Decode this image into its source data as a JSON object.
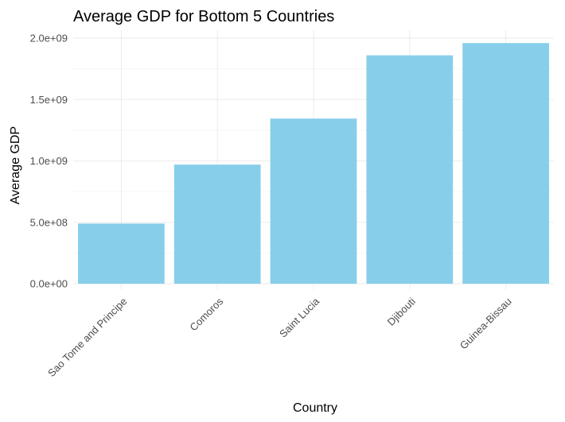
{
  "chart_data": {
    "type": "bar",
    "title": "Average GDP for Bottom 5 Countries",
    "xlabel": "Country",
    "ylabel": "Average GDP",
    "categories": [
      "Sao Tome and Principe",
      "Comoros",
      "Saint Lucia",
      "Djibouti",
      "Guinea-Bissau"
    ],
    "values": [
      490000000,
      970000000,
      1345000000,
      1860000000,
      1960000000
    ],
    "ylim": [
      0,
      2000000000
    ],
    "yticks": [
      0,
      500000000,
      1000000000,
      1500000000,
      2000000000
    ],
    "ytick_labels": [
      "0.0e+00",
      "5.0e+08",
      "1.0e+09",
      "1.5e+09",
      "2.0e+09"
    ],
    "bar_color": "#87CEEB",
    "grid": true,
    "legend": "none"
  }
}
